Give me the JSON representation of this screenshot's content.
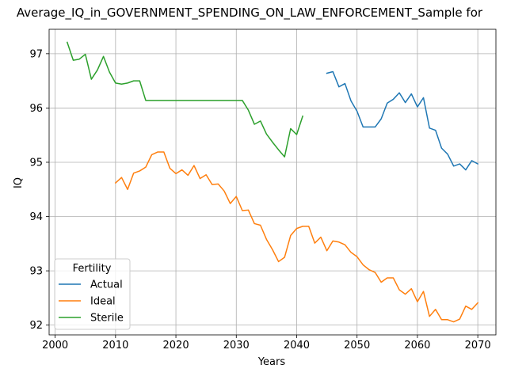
{
  "chart_data": {
    "type": "line",
    "title": "Average_IQ_in_GOVERNMENT_SPENDING_ON_LAW_ENFORCEMENT_Sample for",
    "xlabel": "Years",
    "ylabel": "IQ",
    "xlim": [
      1999,
      2073
    ],
    "ylim": [
      91.82,
      97.45
    ],
    "x_ticks": [
      2000,
      2010,
      2020,
      2030,
      2040,
      2050,
      2060,
      2070
    ],
    "y_ticks": [
      92,
      93,
      94,
      95,
      96,
      97
    ],
    "grid": true,
    "legend": {
      "title": "Fertility",
      "placement": "lower-left"
    },
    "series": [
      {
        "name": "Actual",
        "color": "#1f77b4",
        "x": [
          2045,
          2046,
          2047,
          2048,
          2049,
          2050,
          2051,
          2052,
          2053,
          2054,
          2055,
          2056,
          2057,
          2058,
          2059,
          2060,
          2061,
          2062,
          2063,
          2064,
          2065,
          2066,
          2067,
          2068,
          2069,
          2070
        ],
        "y": [
          96.64,
          96.67,
          96.39,
          96.45,
          96.13,
          95.94,
          95.65,
          95.65,
          95.65,
          95.8,
          96.09,
          96.16,
          96.28,
          96.1,
          96.26,
          96.02,
          96.19,
          95.63,
          95.59,
          95.26,
          95.15,
          94.93,
          94.97,
          94.86,
          95.03,
          94.97
        ]
      },
      {
        "name": "Ideal",
        "color": "#ff7f0e",
        "x": [
          2010,
          2011,
          2012,
          2013,
          2014,
          2015,
          2016,
          2017,
          2018,
          2019,
          2020,
          2021,
          2022,
          2023,
          2024,
          2025,
          2026,
          2027,
          2028,
          2029,
          2030,
          2031,
          2032,
          2033,
          2034,
          2035,
          2036,
          2037,
          2038,
          2039,
          2040,
          2041,
          2042,
          2043,
          2044,
          2045,
          2046,
          2047,
          2048,
          2049,
          2050,
          2051,
          2052,
          2053,
          2054,
          2055,
          2056,
          2057,
          2058,
          2059,
          2060,
          2061,
          2062,
          2063,
          2064,
          2065,
          2066,
          2067,
          2068,
          2069,
          2070
        ],
        "y": [
          94.62,
          94.72,
          94.5,
          94.8,
          94.84,
          94.91,
          95.14,
          95.19,
          95.19,
          94.89,
          94.79,
          94.86,
          94.76,
          94.94,
          94.7,
          94.77,
          94.59,
          94.6,
          94.47,
          94.24,
          94.37,
          94.11,
          94.12,
          93.87,
          93.84,
          93.58,
          93.39,
          93.17,
          93.25,
          93.65,
          93.78,
          93.82,
          93.82,
          93.51,
          93.62,
          93.37,
          93.55,
          93.53,
          93.48,
          93.34,
          93.26,
          93.11,
          93.02,
          92.97,
          92.79,
          92.87,
          92.87,
          92.65,
          92.57,
          92.67,
          92.43,
          92.62,
          92.16,
          92.29,
          92.1,
          92.1,
          92.06,
          92.11,
          92.35,
          92.29,
          92.41
        ]
      },
      {
        "name": "Sterile",
        "color": "#2ca02c",
        "x": [
          2002,
          2003,
          2004,
          2005,
          2006,
          2007,
          2008,
          2009,
          2010,
          2011,
          2012,
          2013,
          2014,
          2015,
          2016,
          2017,
          2018,
          2019,
          2020,
          2021,
          2022,
          2023,
          2024,
          2025,
          2026,
          2027,
          2028,
          2029,
          2030,
          2031,
          2032,
          2033,
          2034,
          2035,
          2036,
          2037,
          2038,
          2039,
          2040,
          2041
        ],
        "y": [
          97.21,
          96.88,
          96.9,
          96.99,
          96.53,
          96.7,
          96.95,
          96.66,
          96.46,
          96.44,
          96.46,
          96.5,
          96.5,
          96.14,
          96.14,
          96.14,
          96.14,
          96.14,
          96.14,
          96.14,
          96.14,
          96.14,
          96.14,
          96.14,
          96.14,
          96.14,
          96.14,
          96.14,
          96.14,
          96.14,
          95.96,
          95.7,
          95.76,
          95.52,
          95.37,
          95.23,
          95.1,
          95.62,
          95.51,
          95.85
        ]
      }
    ]
  }
}
